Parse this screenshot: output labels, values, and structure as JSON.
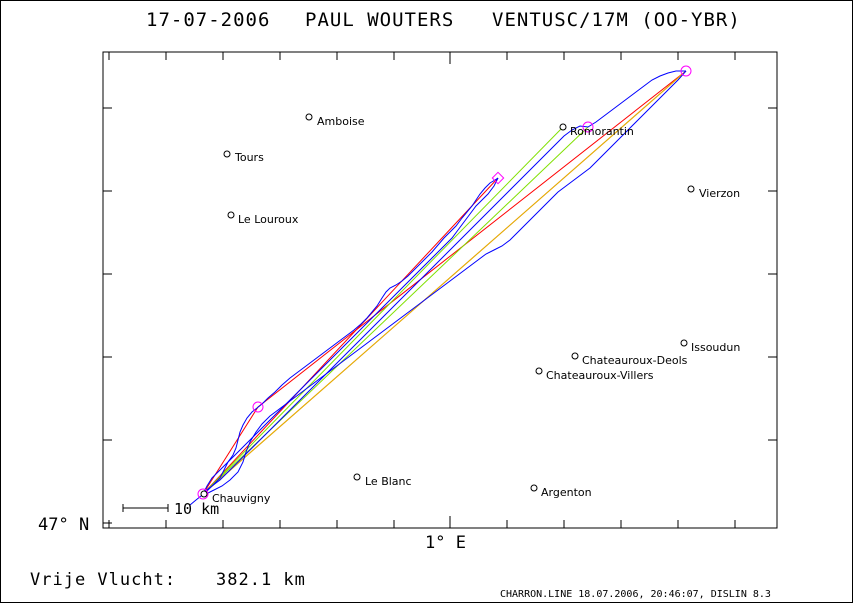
{
  "header": {
    "date": "17-07-2006",
    "pilot": "PAUL WOUTERS",
    "glider": "VENTUSC/17M (OO-YBR)"
  },
  "axes": {
    "lat_label": "47° N",
    "lon_label": "1° E"
  },
  "scale_bar": {
    "label": "10 km"
  },
  "towns": [
    {
      "name": "Amboise"
    },
    {
      "name": "Tours"
    },
    {
      "name": "Le Louroux"
    },
    {
      "name": "Romorantin"
    },
    {
      "name": "Vierzon"
    },
    {
      "name": "Issoudun"
    },
    {
      "name": "Chateauroux-Deols"
    },
    {
      "name": "Chateauroux-Villers"
    },
    {
      "name": "Le Blanc"
    },
    {
      "name": "Argenton"
    },
    {
      "name": "Chauvigny"
    }
  ],
  "summary": {
    "label": "Vrije Vlucht:",
    "distance": "382.1 km"
  },
  "footer": {
    "text": "CHARRON.LINE 18.07.2006, 20:46:07, DISLIN 8.3"
  },
  "colors": {
    "track": "#0000ff",
    "task_red": "#ff0000",
    "task_green": "#80e000",
    "task_yellow": "#e0c000",
    "turnpoint": "#ff00ff"
  }
}
